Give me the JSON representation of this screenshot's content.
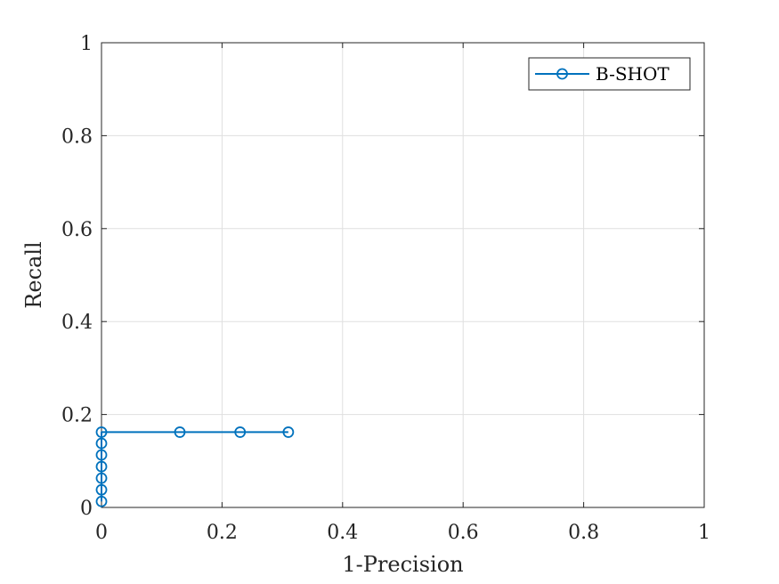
{
  "chart_data": {
    "type": "line",
    "title": "",
    "xlabel": "1-Precision",
    "ylabel": "Recall",
    "xlim": [
      0,
      1
    ],
    "ylim": [
      0,
      1
    ],
    "x_ticks": [
      "0",
      "0.2",
      "0.4",
      "0.6",
      "0.8",
      "1"
    ],
    "y_ticks": [
      "0",
      "0.2",
      "0.4",
      "0.6",
      "0.8",
      "1"
    ],
    "grid": true,
    "legend_position": "top-right",
    "series": [
      {
        "name": "B-SHOT",
        "color": "#0072BD",
        "marker": "circle",
        "x": [
          0,
          0,
          0,
          0,
          0,
          0,
          0,
          0.13,
          0.23,
          0.31
        ],
        "y": [
          0.013,
          0.038,
          0.063,
          0.088,
          0.113,
          0.138,
          0.162,
          0.162,
          0.162,
          0.162
        ]
      }
    ]
  }
}
